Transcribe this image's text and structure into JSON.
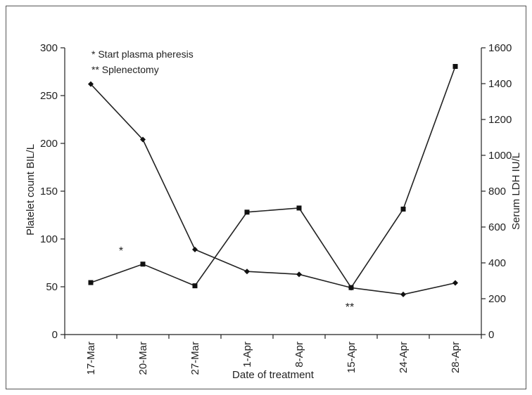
{
  "chart_data": {
    "type": "line",
    "xlabel": "Date of treatment",
    "ylabel_left": "Platelet count BIL/L",
    "ylabel_right": "Serum LDH IU/L",
    "categories": [
      "17-Mar",
      "20-Mar",
      "27-Mar",
      "1-Apr",
      "8-Apr",
      "15-Apr",
      "24-Apr",
      "28-Apr"
    ],
    "ylim_left": [
      0,
      300
    ],
    "yticks_left": [
      0,
      50,
      100,
      150,
      200,
      250,
      300
    ],
    "ylim_right": [
      0,
      1600
    ],
    "yticks_right": [
      0,
      200,
      400,
      600,
      800,
      1000,
      1200,
      1400,
      1600
    ],
    "series": [
      {
        "axis": "left",
        "marker": "diamond",
        "values": [
          262,
          204,
          89,
          66,
          63,
          49,
          42,
          54
        ]
      },
      {
        "axis": "right",
        "marker": "square",
        "values": [
          290,
          393,
          272,
          683,
          706,
          262,
          700,
          1496
        ]
      }
    ],
    "legend_notes": [
      "* Start plasma pheresis",
      "** Splenectomy"
    ],
    "markers": [
      {
        "symbol": "*",
        "near_category": "20-Mar"
      },
      {
        "symbol": "**",
        "near_category": "15-Apr"
      }
    ],
    "grid": false
  }
}
